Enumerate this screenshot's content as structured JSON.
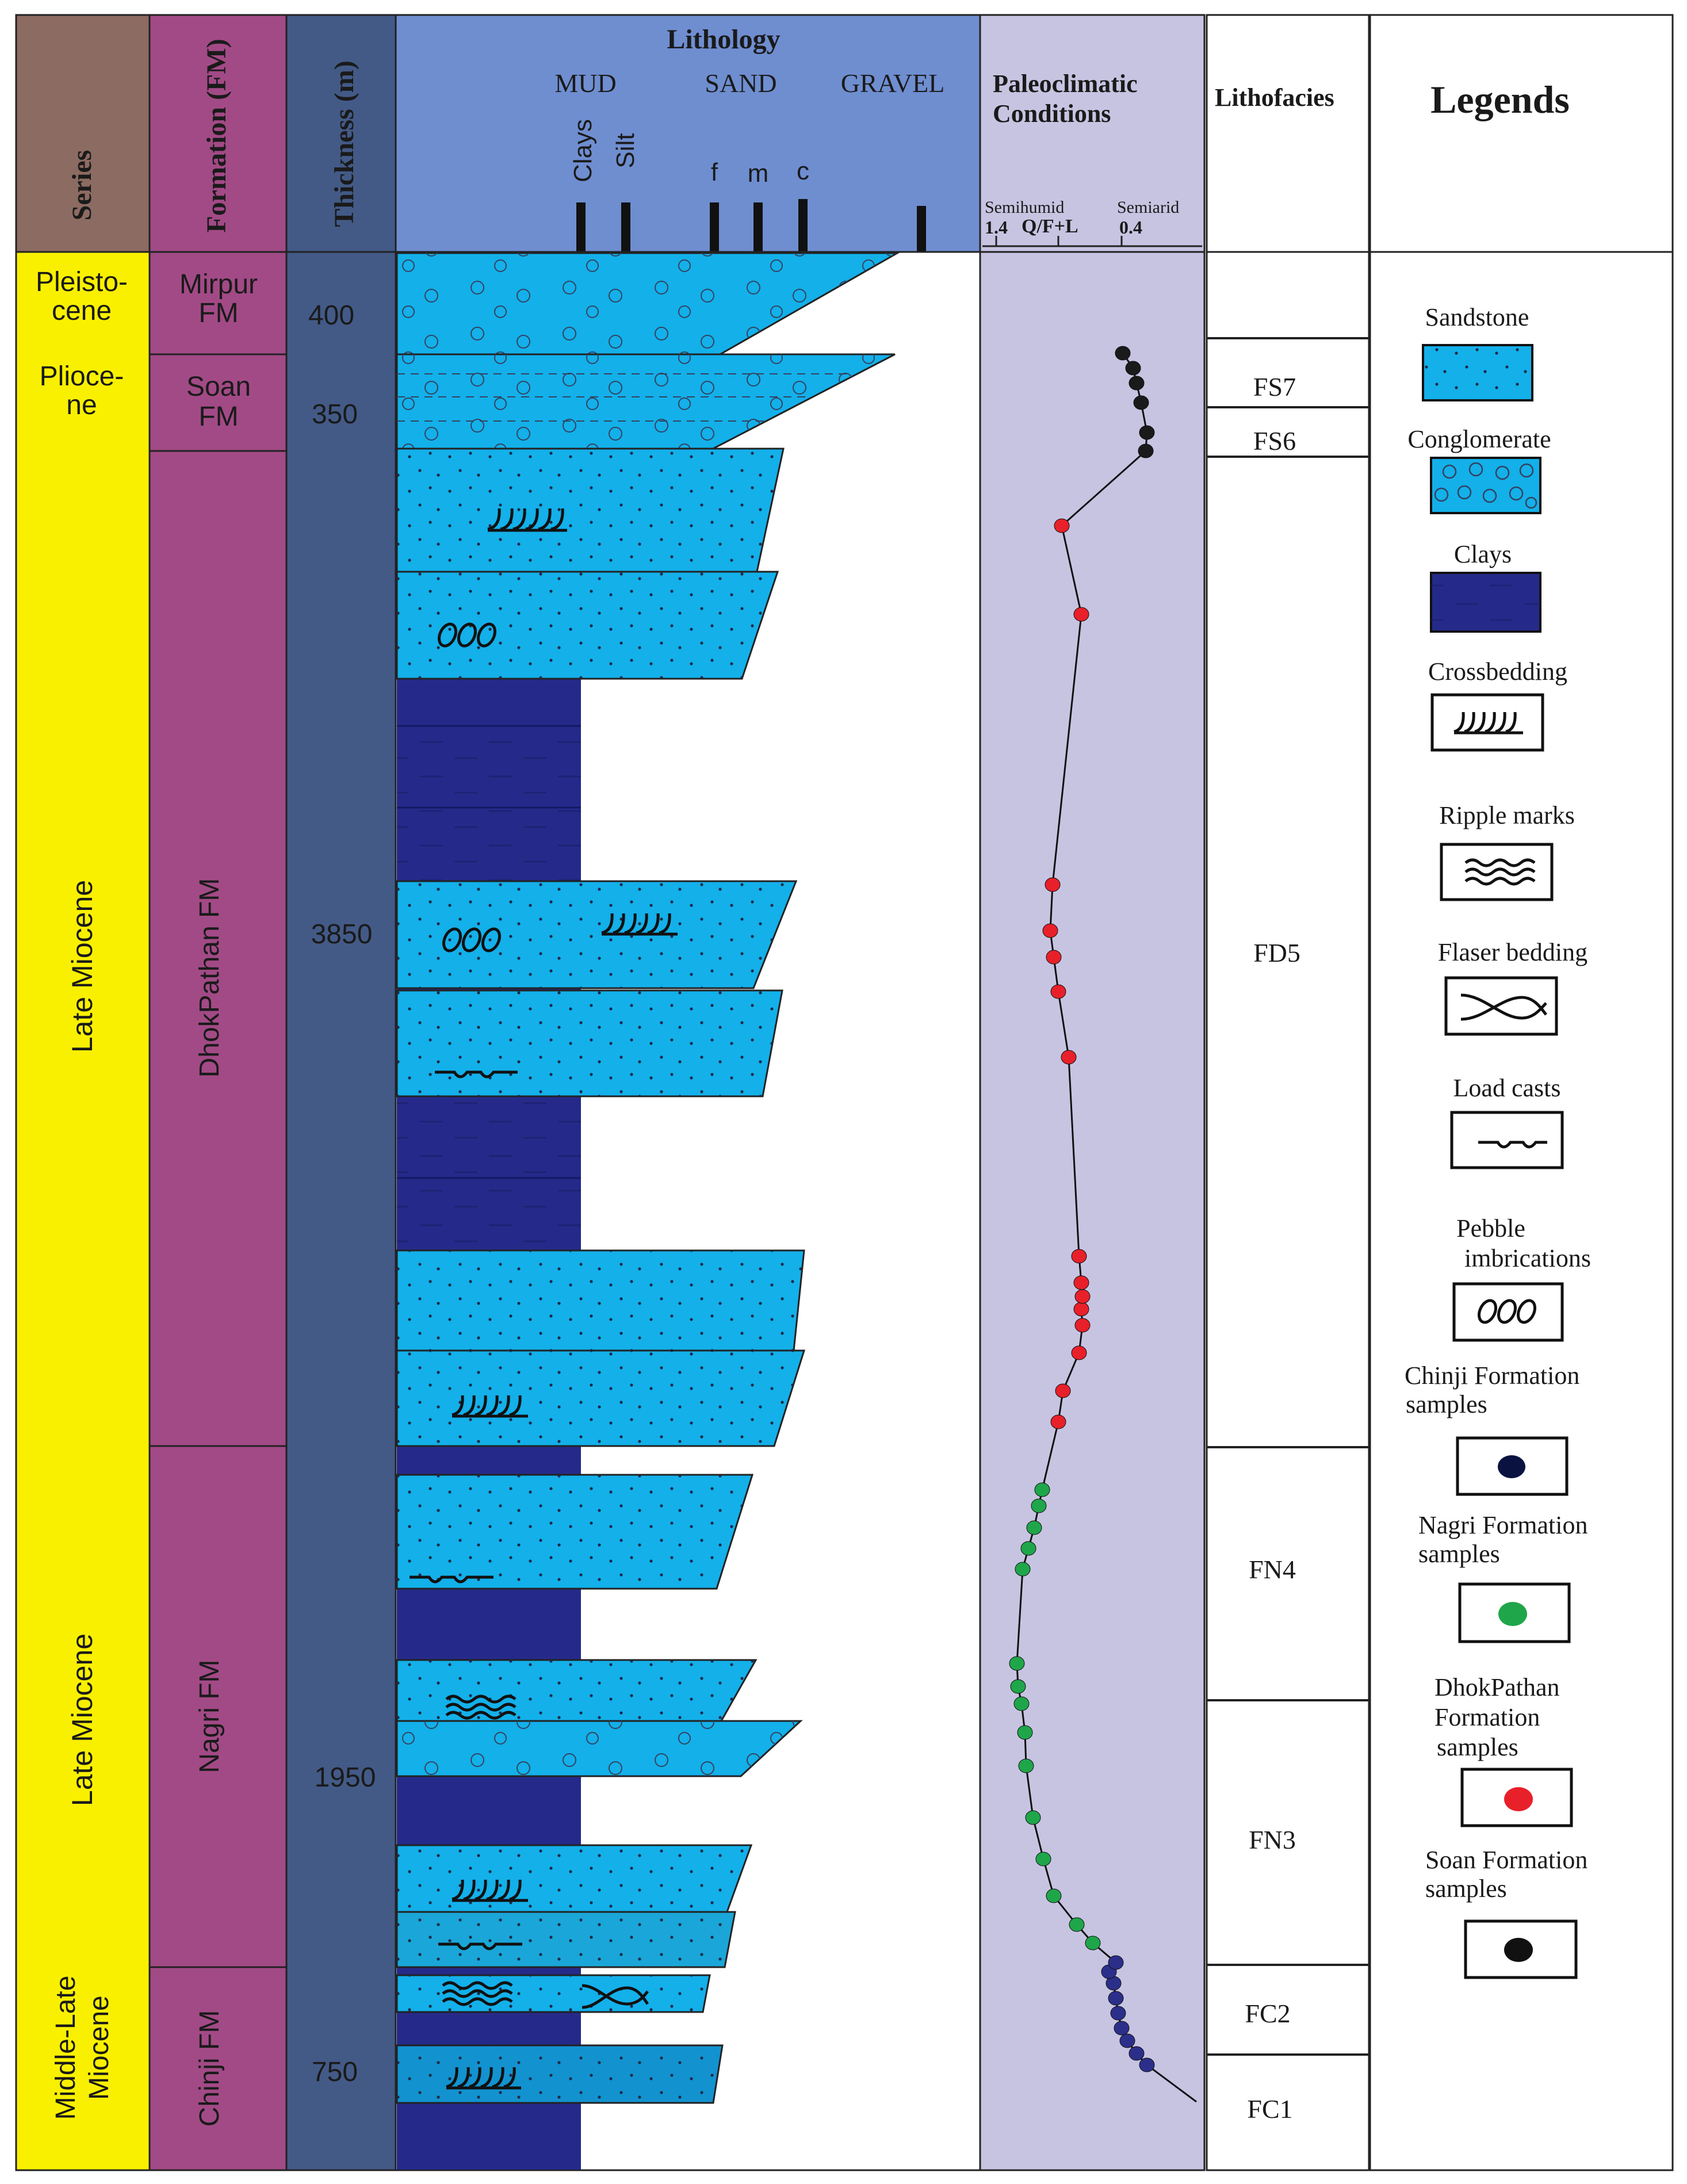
{
  "headers": {
    "series": "Series",
    "formation": "Formation (FM)",
    "thickness": "Thickness (m)",
    "lithology": "Lithology",
    "mud": "MUD",
    "sand": "SAND",
    "gravel": "GRAVEL",
    "clays": "Clays",
    "silt": "Silt",
    "grain_f": "f",
    "grain_m": "m",
    "grain_c": "c",
    "paleo_line1": "Paleoclimatic",
    "paleo_line2": "Conditions",
    "semihumid": "Semihumid",
    "semiarid": "Semiarid",
    "axis_left_value": "1.4",
    "axis_var": "Q/F+L",
    "axis_right_value": "0.4",
    "lithofacies": "Lithofacies",
    "legends": "Legends"
  },
  "series": [
    {
      "line1": "Pleisto-",
      "line2": "cene"
    },
    {
      "line1": "Plioce-",
      "line2": "ne"
    },
    {
      "line1": "Late Miocene",
      "line2": ""
    },
    {
      "line1": "Late Miocene",
      "line2": ""
    },
    {
      "line1": "Middle-Late",
      "line2": "Miocene"
    }
  ],
  "formations": [
    {
      "line1": "Mirpur",
      "line2": "FM"
    },
    {
      "line1": "Soan",
      "line2": "FM"
    },
    {
      "line1": "DhokPathan FM",
      "line2": ""
    },
    {
      "line1": "Nagri FM",
      "line2": ""
    },
    {
      "line1": "Chinji FM",
      "line2": ""
    }
  ],
  "thickness": [
    "400",
    "350",
    "3850",
    "1950",
    "750"
  ],
  "lithofacies": [
    "FS7",
    "FS6",
    "FD5",
    "FN4",
    "FN3",
    "FC2",
    "FC1"
  ],
  "paleoclimate_samples": {
    "soan": {
      "color": "#1a1a1a",
      "count": 6
    },
    "dhokpathan": {
      "color": "#e8202a",
      "count": 16
    },
    "nagri": {
      "color": "#1fa64a",
      "count": 15
    },
    "chinji": {
      "color": "#2b2f8a",
      "count": 9
    }
  },
  "legend": {
    "sandstone": "Sandstone",
    "conglomerate": "Conglomerate",
    "clays": "Clays",
    "crossbedding": "Crossbedding",
    "ripple": "Ripple marks",
    "flaser": "Flaser bedding",
    "load": "Load casts",
    "pebble_line1": "Pebble",
    "pebble_line2": "imbrications",
    "chinji_line1": "Chinji Formation",
    "chinji_line2": "samples",
    "nagri_line1": "Nagri Formation",
    "nagri_line2": "samples",
    "dhok_line1": "DhokPathan",
    "dhok_line2": "Formation",
    "dhok_line3": "samples",
    "soan_line1": "Soan Formation",
    "soan_line2": "samples"
  },
  "colors": {
    "series_fill": "#f9f000",
    "series_header": "#8c6b62",
    "formation_fill": "#a24a86",
    "thickness_fill": "#435a87",
    "lithology_header": "#6f8ed0",
    "sand_fill": "#13b0ea",
    "clay_fill": "#252a8a",
    "paleo_fill": "#c7c4e2"
  }
}
